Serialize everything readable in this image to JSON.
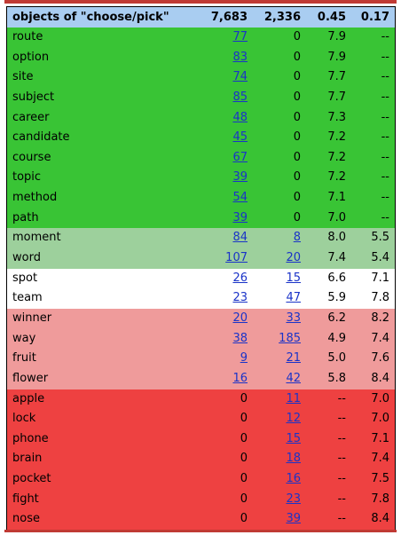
{
  "header": {
    "title": "objects of \"choose/pick\"",
    "col_a": "7,683",
    "col_b": "2,336",
    "col_c": "0.45",
    "col_d": "0.17"
  },
  "colors": {
    "header": "#a9cdf1",
    "group_1": "#39c435",
    "group_2": "#9dd09c",
    "group_3": "#ffffff",
    "group_4": "#ef9b9b",
    "group_5": "#ee4141",
    "link": "#1a33c8"
  },
  "rows": [
    {
      "word": "route",
      "a": "77",
      "b": "0",
      "c": "7.9",
      "d": "--",
      "group": "g1",
      "a_link": true,
      "b_link": false
    },
    {
      "word": "option",
      "a": "83",
      "b": "0",
      "c": "7.9",
      "d": "--",
      "group": "g1",
      "a_link": true,
      "b_link": false
    },
    {
      "word": "site",
      "a": "74",
      "b": "0",
      "c": "7.7",
      "d": "--",
      "group": "g1",
      "a_link": true,
      "b_link": false
    },
    {
      "word": "subject",
      "a": "85",
      "b": "0",
      "c": "7.7",
      "d": "--",
      "group": "g1",
      "a_link": true,
      "b_link": false
    },
    {
      "word": "career",
      "a": "48",
      "b": "0",
      "c": "7.3",
      "d": "--",
      "group": "g1",
      "a_link": true,
      "b_link": false
    },
    {
      "word": "candidate",
      "a": "45",
      "b": "0",
      "c": "7.2",
      "d": "--",
      "group": "g1",
      "a_link": true,
      "b_link": false
    },
    {
      "word": "course",
      "a": "67",
      "b": "0",
      "c": "7.2",
      "d": "--",
      "group": "g1",
      "a_link": true,
      "b_link": false
    },
    {
      "word": "topic",
      "a": "39",
      "b": "0",
      "c": "7.2",
      "d": "--",
      "group": "g1",
      "a_link": true,
      "b_link": false
    },
    {
      "word": "method",
      "a": "54",
      "b": "0",
      "c": "7.1",
      "d": "--",
      "group": "g1",
      "a_link": true,
      "b_link": false
    },
    {
      "word": "path",
      "a": "39",
      "b": "0",
      "c": "7.0",
      "d": "--",
      "group": "g1",
      "a_link": true,
      "b_link": false
    },
    {
      "word": "moment",
      "a": "84",
      "b": "8",
      "c": "8.0",
      "d": "5.5",
      "group": "g2",
      "a_link": true,
      "b_link": true
    },
    {
      "word": "word",
      "a": "107",
      "b": "20",
      "c": "7.4",
      "d": "5.4",
      "group": "g2",
      "a_link": true,
      "b_link": true
    },
    {
      "word": "spot",
      "a": "26",
      "b": "15",
      "c": "6.6",
      "d": "7.1",
      "group": "g3",
      "a_link": true,
      "b_link": true
    },
    {
      "word": "team",
      "a": "23",
      "b": "47",
      "c": "5.9",
      "d": "7.8",
      "group": "g3",
      "a_link": true,
      "b_link": true
    },
    {
      "word": "winner",
      "a": "20",
      "b": "33",
      "c": "6.2",
      "d": "8.2",
      "group": "g4",
      "a_link": true,
      "b_link": true
    },
    {
      "word": "way",
      "a": "38",
      "b": "185",
      "c": "4.9",
      "d": "7.4",
      "group": "g4",
      "a_link": true,
      "b_link": true
    },
    {
      "word": "fruit",
      "a": "9",
      "b": "21",
      "c": "5.0",
      "d": "7.6",
      "group": "g4",
      "a_link": true,
      "b_link": true
    },
    {
      "word": "flower",
      "a": "16",
      "b": "42",
      "c": "5.8",
      "d": "8.4",
      "group": "g4",
      "a_link": true,
      "b_link": true
    },
    {
      "word": "apple",
      "a": "0",
      "b": "11",
      "c": "--",
      "d": "7.0",
      "group": "g5",
      "a_link": false,
      "b_link": true
    },
    {
      "word": "lock",
      "a": "0",
      "b": "12",
      "c": "--",
      "d": "7.0",
      "group": "g5",
      "a_link": false,
      "b_link": true
    },
    {
      "word": "phone",
      "a": "0",
      "b": "15",
      "c": "--",
      "d": "7.1",
      "group": "g5",
      "a_link": false,
      "b_link": true
    },
    {
      "word": "brain",
      "a": "0",
      "b": "18",
      "c": "--",
      "d": "7.4",
      "group": "g5",
      "a_link": false,
      "b_link": true
    },
    {
      "word": "pocket",
      "a": "0",
      "b": "16",
      "c": "--",
      "d": "7.5",
      "group": "g5",
      "a_link": false,
      "b_link": true
    },
    {
      "word": "fight",
      "a": "0",
      "b": "23",
      "c": "--",
      "d": "7.8",
      "group": "g5",
      "a_link": false,
      "b_link": true
    },
    {
      "word": "nose",
      "a": "0",
      "b": "39",
      "c": "--",
      "d": "8.4",
      "group": "g5",
      "a_link": false,
      "b_link": true
    }
  ]
}
